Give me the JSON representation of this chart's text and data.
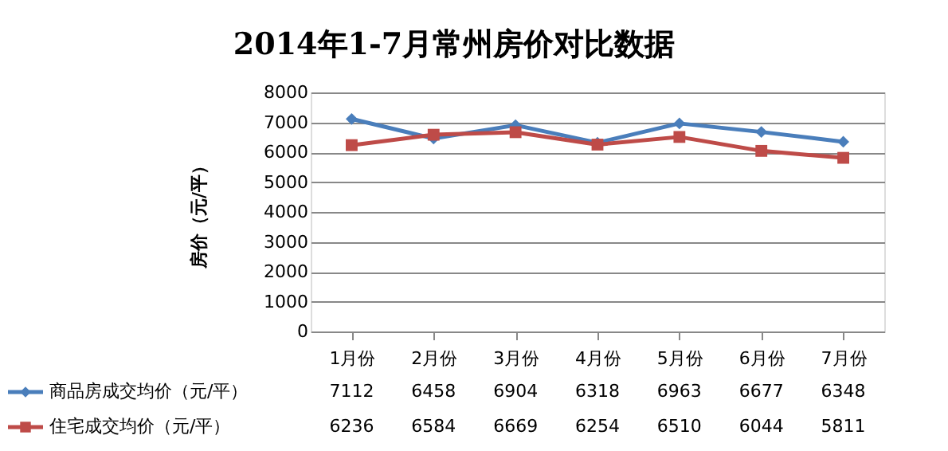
{
  "chart_data": {
    "type": "line",
    "title": "2014年1-7月常州房价对比数据",
    "ylabel": "房价（元/平）",
    "categories": [
      "1月份",
      "2月份",
      "3月份",
      "4月份",
      "5月份",
      "6月份",
      "7月份"
    ],
    "series": [
      {
        "name": "商品房成交均价（元/平）",
        "color": "#4a7ebb",
        "marker": "diamond",
        "values": [
          7112,
          6458,
          6904,
          6318,
          6963,
          6677,
          6348
        ]
      },
      {
        "name": "住宅成交均价（元/平）",
        "color": "#be4b48",
        "marker": "square",
        "values": [
          6236,
          6584,
          6669,
          6254,
          6510,
          6044,
          5811
        ]
      }
    ],
    "ylim": [
      0,
      8000
    ],
    "yticks": [
      0,
      1000,
      2000,
      3000,
      4000,
      5000,
      6000,
      7000,
      8000
    ],
    "grid": "y",
    "legend": "bottom",
    "data_labels": true,
    "line_style": "solid"
  }
}
